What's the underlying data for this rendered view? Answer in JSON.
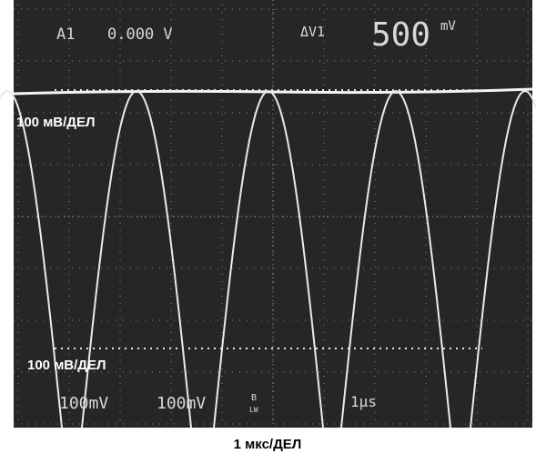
{
  "readout": {
    "channel": "A1",
    "offset": "0.000 V",
    "delta": "ΔV1",
    "delta_value": "500",
    "delta_unit": "mV"
  },
  "labels": {
    "upper": "100 мВ/ДЕЛ",
    "lower": "100 мВ/ДЕЛ",
    "time": "1 мкс/ДЕЛ"
  },
  "status": {
    "ch1": "100mV",
    "ch2": "100mV",
    "mode": "B",
    "mode_sub": "LW",
    "timebase": "1µs"
  }
}
